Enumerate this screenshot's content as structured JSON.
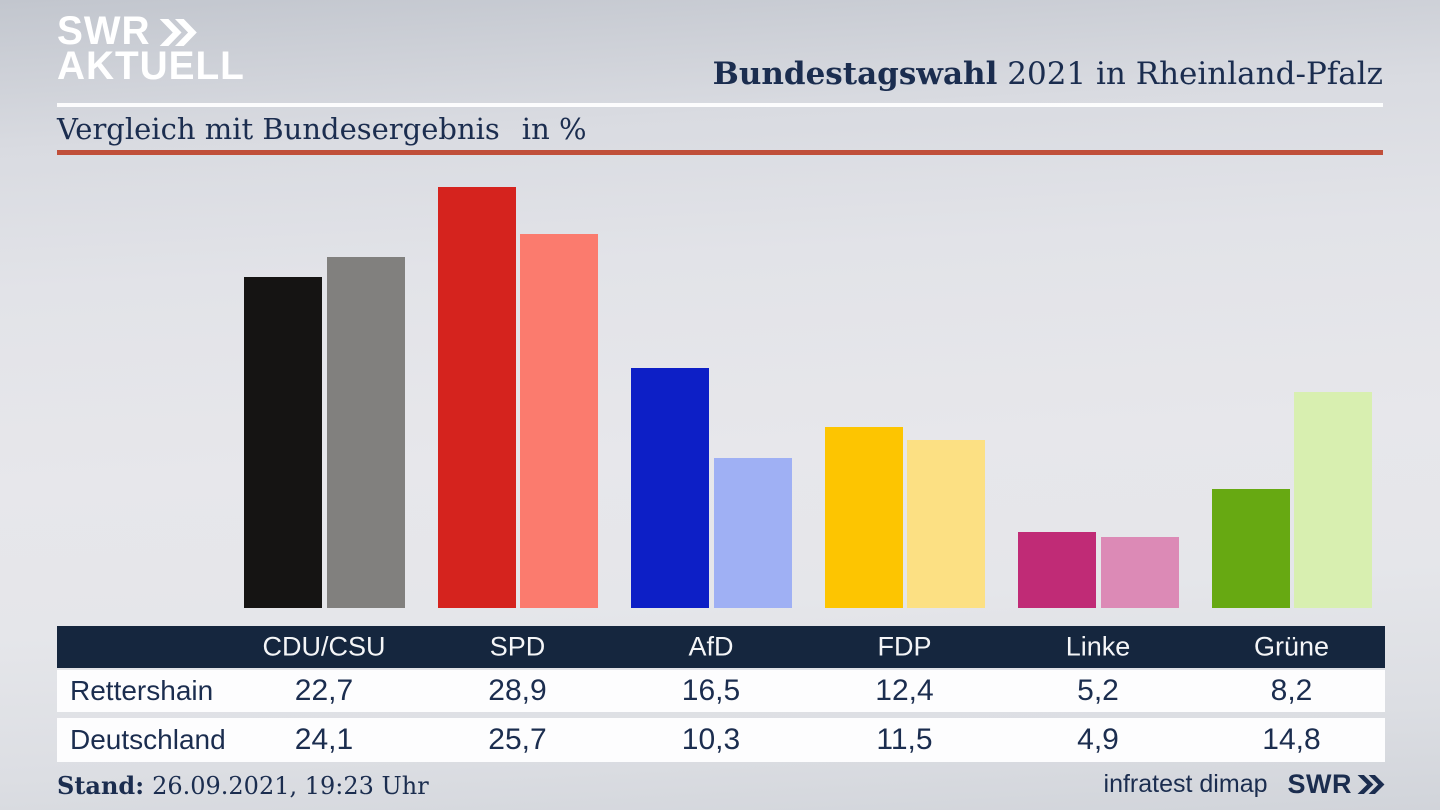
{
  "header": {
    "logo_line1": "SWR",
    "logo_line2": "AKTUELL",
    "title_bold": "Bundestagswahl",
    "title_rest": " 2021 in Rheinland-Pfalz"
  },
  "subtitle": {
    "label": "Vergleich mit Bundesergebnis",
    "unit": "in %"
  },
  "chart_data": {
    "type": "bar",
    "title": "Vergleich mit Bundesergebnis in %",
    "categories": [
      "CDU/CSU",
      "SPD",
      "AfD",
      "FDP",
      "Linke",
      "Grüne"
    ],
    "series": [
      {
        "name": "Rettershain",
        "values": [
          22.7,
          28.9,
          16.5,
          12.4,
          5.2,
          8.2
        ],
        "colors": [
          "#151413",
          "#d5231e",
          "#0d1fc6",
          "#fdc501",
          "#c02b76",
          "#67a912"
        ]
      },
      {
        "name": "Deutschland",
        "values": [
          24.1,
          25.7,
          10.3,
          11.5,
          4.9,
          14.8
        ],
        "colors": [
          "#81807e",
          "#fb7b6e",
          "#9fb0f4",
          "#fce083",
          "#dc8ab6",
          "#d8efb0"
        ]
      }
    ],
    "unit": "%",
    "ylim": [
      0,
      31
    ],
    "axes_shown": false,
    "grid": false,
    "legend_position": "table-below"
  },
  "table": {
    "header": [
      "CDU/CSU",
      "SPD",
      "AfD",
      "FDP",
      "Linke",
      "Grüne"
    ],
    "rows": [
      {
        "label": "Rettershain",
        "values": [
          "22,7",
          "28,9",
          "16,5",
          "12,4",
          "5,2",
          "8,2"
        ]
      },
      {
        "label": "Deutschland",
        "values": [
          "24,1",
          "25,7",
          "10,3",
          "11,5",
          "4,9",
          "14,8"
        ]
      }
    ]
  },
  "footer": {
    "stand_label": "Stand:",
    "stand_value": "26.09.2021, 19:23 Uhr",
    "source": "infratest dimap",
    "source_logo": "SWR"
  },
  "colors": {
    "text_navy": "#1b2d4f",
    "table_header_bg": "#15263e",
    "divider_red": "#c04f3a",
    "divider_white": "#ffffff",
    "logo_white": "#ffffff"
  }
}
